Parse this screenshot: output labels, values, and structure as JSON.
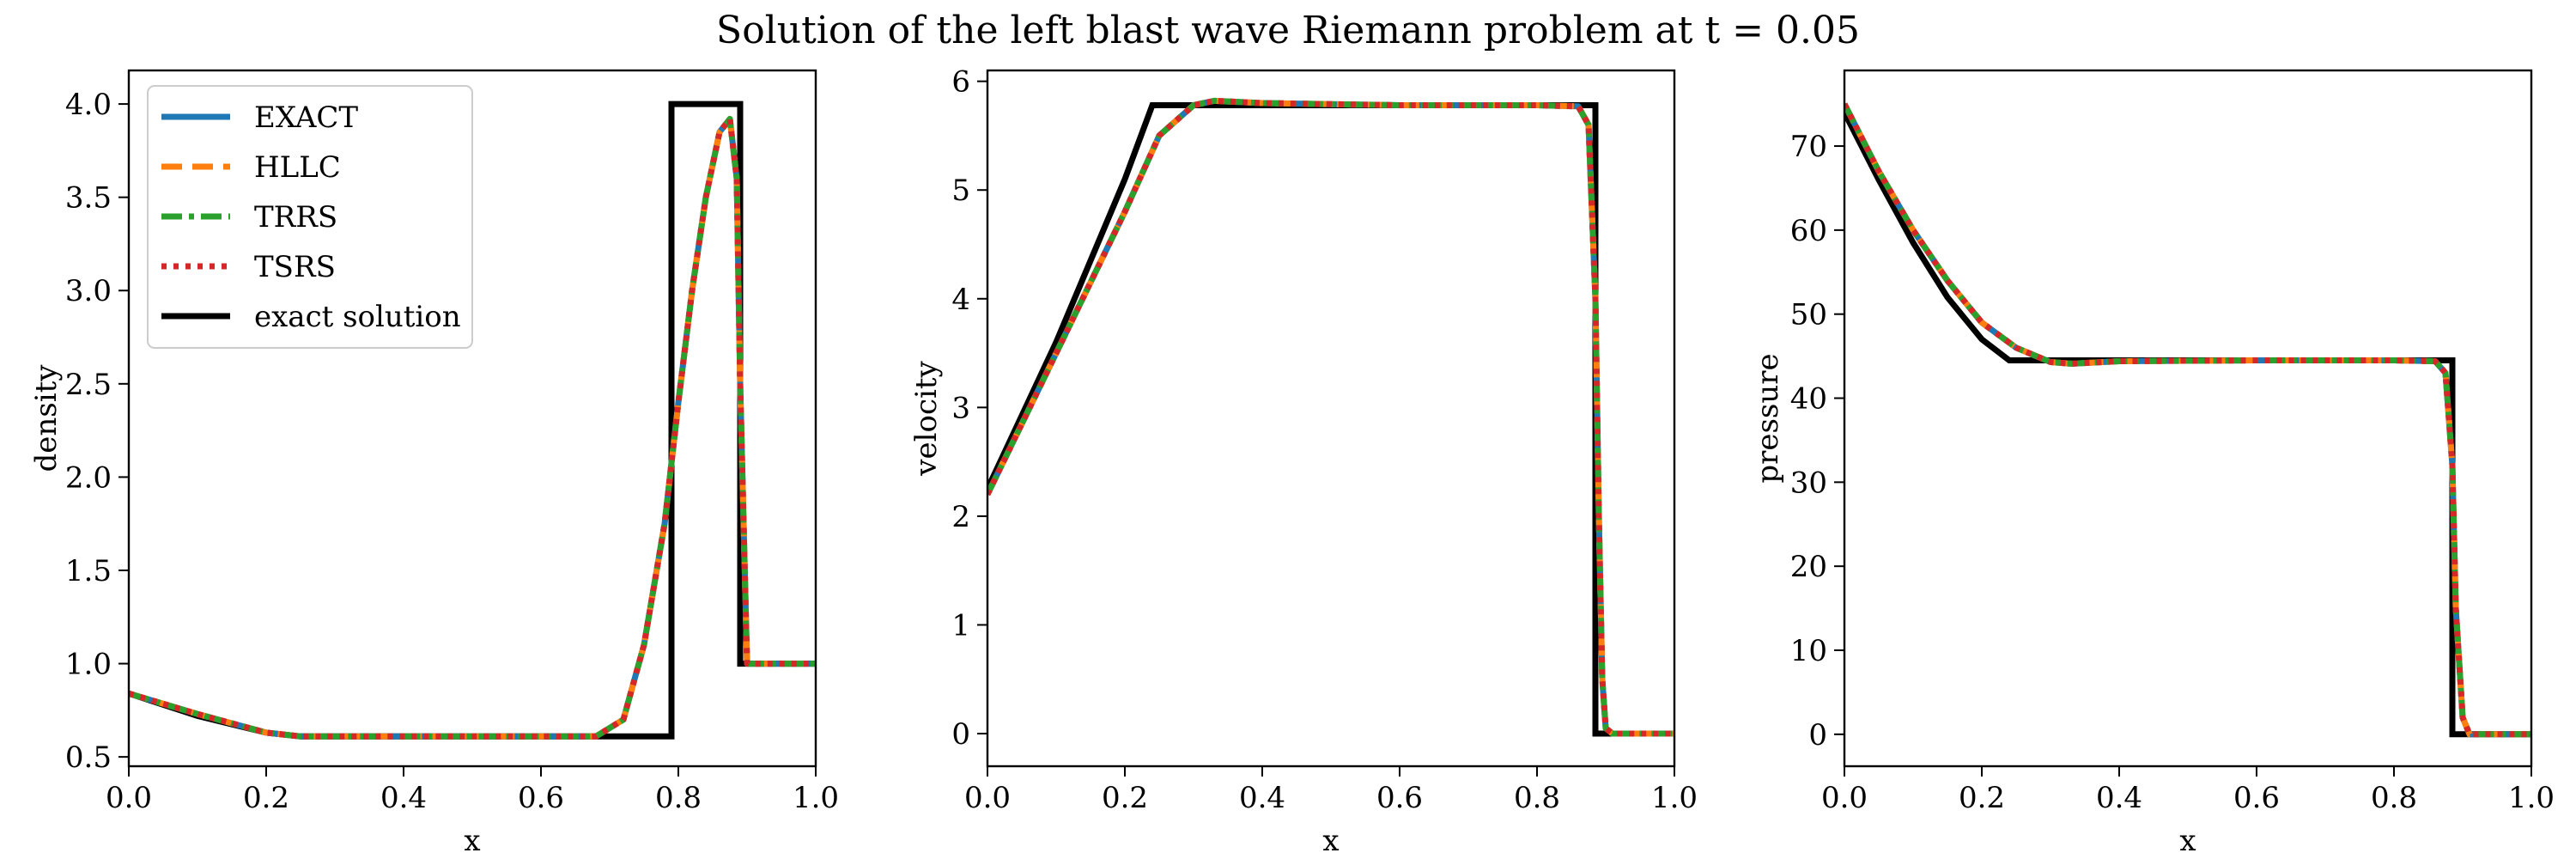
{
  "figure": {
    "title": "Solution of the left blast wave Riemann problem at t = 0.05"
  },
  "colors": {
    "EXACT": "#1f77b4",
    "HLLC": "#ff7f0e",
    "TRRS": "#2ca02c",
    "TSRS": "#d62728",
    "exact solution": "#000000"
  },
  "legend": {
    "placement": "upper-left of first panel",
    "entries": [
      "EXACT",
      "HLLC",
      "TRRS",
      "TSRS",
      "exact solution"
    ],
    "styles": [
      "solid",
      "dashed",
      "dashdot",
      "dotted",
      "solid"
    ]
  },
  "chart_data": [
    {
      "type": "line",
      "xlabel": "x",
      "ylabel": "density",
      "xlim": [
        0.0,
        1.0
      ],
      "ylim": [
        0.45,
        4.18
      ],
      "xticks": [
        "0.0",
        "0.2",
        "0.4",
        "0.6",
        "0.8",
        "1.0"
      ],
      "xtick_values": [
        0.0,
        0.2,
        0.4,
        0.6,
        0.8,
        1.0
      ],
      "yticks": [
        "0.5",
        "1.0",
        "1.5",
        "2.0",
        "2.5",
        "3.0",
        "3.5",
        "4.0"
      ],
      "ytick_values": [
        0.5,
        1.0,
        1.5,
        2.0,
        2.5,
        3.0,
        3.5,
        4.0
      ],
      "numerical": {
        "x": [
          0.0,
          0.1,
          0.2,
          0.25,
          0.3,
          0.4,
          0.5,
          0.6,
          0.68,
          0.72,
          0.75,
          0.78,
          0.8,
          0.82,
          0.84,
          0.86,
          0.875,
          0.885,
          0.89,
          0.9,
          1.0
        ],
        "y": [
          0.84,
          0.73,
          0.63,
          0.61,
          0.61,
          0.61,
          0.61,
          0.61,
          0.61,
          0.7,
          1.1,
          1.75,
          2.4,
          3.0,
          3.5,
          3.85,
          3.92,
          3.6,
          2.5,
          1.0,
          1.0
        ]
      },
      "exact_solution": {
        "x": [
          0.0,
          0.1,
          0.2,
          0.25,
          0.79,
          0.79,
          0.89,
          0.89,
          1.0
        ],
        "y": [
          0.84,
          0.72,
          0.63,
          0.61,
          0.61,
          4.0,
          4.0,
          1.0,
          1.0
        ]
      },
      "series": [
        {
          "name": "EXACT",
          "style": "solid"
        },
        {
          "name": "HLLC",
          "style": "dashed"
        },
        {
          "name": "TRRS",
          "style": "dashdot"
        },
        {
          "name": "TSRS",
          "style": "dotted"
        },
        {
          "name": "exact solution",
          "style": "solid"
        }
      ]
    },
    {
      "type": "line",
      "xlabel": "x",
      "ylabel": "velocity",
      "xlim": [
        0.0,
        1.0
      ],
      "ylim": [
        -0.3,
        6.1
      ],
      "xticks": [
        "0.0",
        "0.2",
        "0.4",
        "0.6",
        "0.8",
        "1.0"
      ],
      "xtick_values": [
        0.0,
        0.2,
        0.4,
        0.6,
        0.8,
        1.0
      ],
      "yticks": [
        "0",
        "1",
        "2",
        "3",
        "4",
        "5",
        "6"
      ],
      "ytick_values": [
        0,
        1,
        2,
        3,
        4,
        5,
        6
      ],
      "numerical": {
        "x": [
          0.0,
          0.1,
          0.2,
          0.25,
          0.3,
          0.33,
          0.4,
          0.6,
          0.8,
          0.86,
          0.875,
          0.885,
          0.89,
          0.895,
          0.9,
          0.91,
          1.0
        ],
        "y": [
          2.2,
          3.5,
          4.8,
          5.5,
          5.78,
          5.82,
          5.8,
          5.78,
          5.78,
          5.77,
          5.6,
          4.0,
          2.0,
          0.5,
          0.05,
          0.0,
          0.0
        ]
      },
      "exact_solution": {
        "x": [
          0.0,
          0.1,
          0.2,
          0.24,
          0.885,
          0.885,
          1.0
        ],
        "y": [
          2.25,
          3.6,
          5.1,
          5.78,
          5.78,
          0.0,
          0.0
        ]
      },
      "series": [
        {
          "name": "EXACT",
          "style": "solid"
        },
        {
          "name": "HLLC",
          "style": "dashed"
        },
        {
          "name": "TRRS",
          "style": "dashdot"
        },
        {
          "name": "TSRS",
          "style": "dotted"
        },
        {
          "name": "exact solution",
          "style": "solid"
        }
      ]
    },
    {
      "type": "line",
      "xlabel": "x",
      "ylabel": "pressure",
      "xlim": [
        0.0,
        1.0
      ],
      "ylim": [
        -3.8,
        79.0
      ],
      "xticks": [
        "0.0",
        "0.2",
        "0.4",
        "0.6",
        "0.8",
        "1.0"
      ],
      "xtick_values": [
        0.0,
        0.2,
        0.4,
        0.6,
        0.8,
        1.0
      ],
      "yticks": [
        "0",
        "10",
        "20",
        "30",
        "40",
        "50",
        "60",
        "70"
      ],
      "ytick_values": [
        0,
        10,
        20,
        30,
        40,
        50,
        60,
        70
      ],
      "numerical": {
        "x": [
          0.0,
          0.05,
          0.1,
          0.15,
          0.2,
          0.25,
          0.3,
          0.33,
          0.4,
          0.6,
          0.8,
          0.86,
          0.875,
          0.885,
          0.89,
          0.9,
          0.91,
          1.0
        ],
        "y": [
          75.0,
          67.0,
          60.0,
          54.0,
          49.0,
          46.0,
          44.3,
          44.1,
          44.4,
          44.5,
          44.5,
          44.4,
          43.0,
          32.0,
          15.0,
          2.0,
          0.0,
          0.0
        ]
      },
      "exact_solution": {
        "x": [
          0.0,
          0.05,
          0.1,
          0.15,
          0.2,
          0.24,
          0.885,
          0.885,
          1.0
        ],
        "y": [
          74.0,
          66.0,
          58.5,
          52.0,
          47.0,
          44.5,
          44.5,
          0.0,
          0.0
        ]
      },
      "series": [
        {
          "name": "EXACT",
          "style": "solid"
        },
        {
          "name": "HLLC",
          "style": "dashed"
        },
        {
          "name": "TRRS",
          "style": "dashdot"
        },
        {
          "name": "TSRS",
          "style": "dotted"
        },
        {
          "name": "exact solution",
          "style": "solid"
        }
      ]
    }
  ]
}
